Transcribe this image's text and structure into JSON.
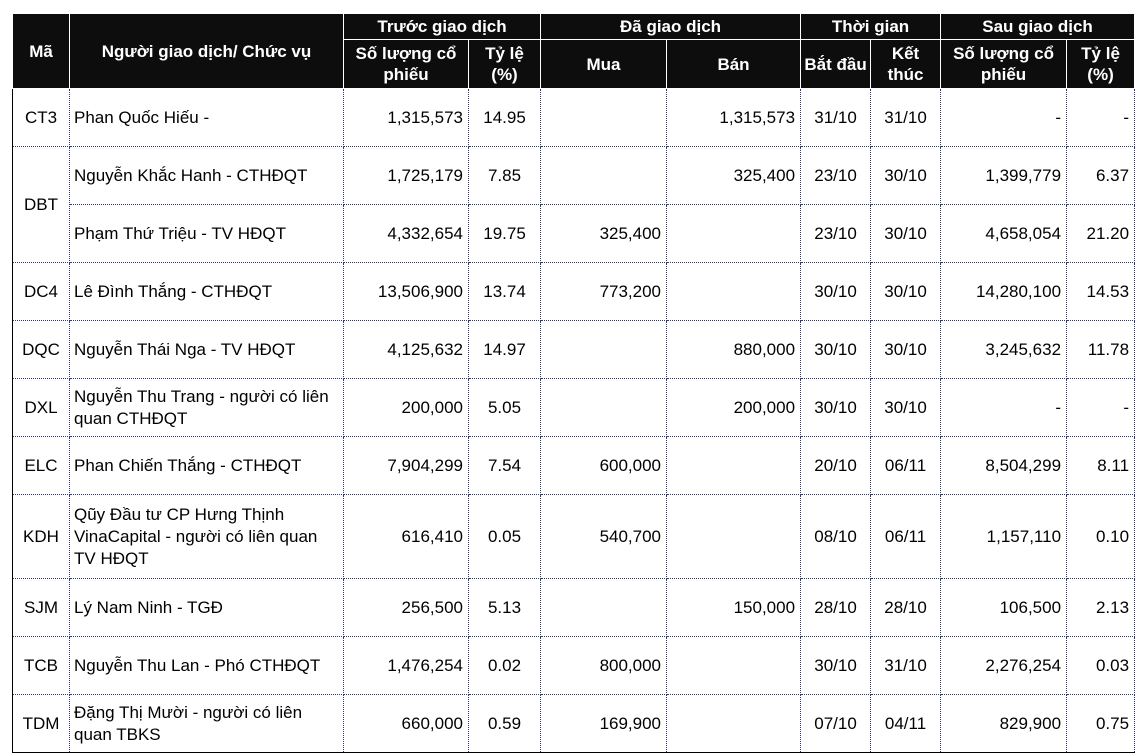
{
  "header": {
    "code": "Mã",
    "person": "Người giao dịch/ Chức vụ",
    "before": "Trước giao dịch",
    "traded": "Đã giao dịch",
    "time": "Thời gian",
    "after": "Sau giao dịch",
    "shares": "Số lượng cổ phiếu",
    "ratio": "Tỷ lệ (%)",
    "buy": "Mua",
    "sell": "Bán",
    "start": "Bắt đầu",
    "end": "Kết thúc",
    "shares_after": "Số lượng cổ phiếu",
    "ratio_after": "Tỷ lệ (%)"
  },
  "groups": [
    {
      "code": "CT3",
      "rows": [
        {
          "person": "Phan Quốc Hiếu -",
          "before_shares": "1,315,573",
          "before_ratio": "14.95",
          "buy": "",
          "sell": "1,315,573",
          "start": "31/10",
          "end": "31/10",
          "after_shares": "-",
          "after_ratio": "-"
        }
      ]
    },
    {
      "code": "DBT",
      "rows": [
        {
          "person": "Nguyễn Khắc Hanh - CTHĐQT",
          "before_shares": "1,725,179",
          "before_ratio": "7.85",
          "buy": "",
          "sell": "325,400",
          "start": "23/10",
          "end": "30/10",
          "after_shares": "1,399,779",
          "after_ratio": "6.37"
        },
        {
          "person": "Phạm Thứ Triệu - TV HĐQT",
          "before_shares": "4,332,654",
          "before_ratio": "19.75",
          "buy": "325,400",
          "sell": "",
          "start": "23/10",
          "end": "30/10",
          "after_shares": "4,658,054",
          "after_ratio": "21.20"
        }
      ]
    },
    {
      "code": "DC4",
      "rows": [
        {
          "person": "Lê Đình Thắng - CTHĐQT",
          "before_shares": "13,506,900",
          "before_ratio": "13.74",
          "buy": "773,200",
          "sell": "",
          "start": "30/10",
          "end": "30/10",
          "after_shares": "14,280,100",
          "after_ratio": "14.53"
        }
      ]
    },
    {
      "code": "DQC",
      "rows": [
        {
          "person": "Nguyễn Thái Nga - TV HĐQT",
          "before_shares": "4,125,632",
          "before_ratio": "14.97",
          "buy": "",
          "sell": "880,000",
          "start": "30/10",
          "end": "30/10",
          "after_shares": "3,245,632",
          "after_ratio": "11.78"
        }
      ]
    },
    {
      "code": "DXL",
      "rows": [
        {
          "person": "Nguyễn Thu Trang - người có liên quan CTHĐQT",
          "before_shares": "200,000",
          "before_ratio": "5.05",
          "buy": "",
          "sell": "200,000",
          "start": "30/10",
          "end": "30/10",
          "after_shares": "-",
          "after_ratio": "-"
        }
      ]
    },
    {
      "code": "ELC",
      "rows": [
        {
          "person": "Phan Chiến Thắng - CTHĐQT",
          "before_shares": "7,904,299",
          "before_ratio": "7.54",
          "buy": "600,000",
          "sell": "",
          "start": "20/10",
          "end": "06/11",
          "after_shares": "8,504,299",
          "after_ratio": "8.11"
        }
      ]
    },
    {
      "code": "KDH",
      "tall": true,
      "rows": [
        {
          "person": "Qũy Đầu tư CP Hưng Thịnh VinaCapital - người có liên quan TV HĐQT",
          "before_shares": "616,410",
          "before_ratio": "0.05",
          "buy": "540,700",
          "sell": "",
          "start": "08/10",
          "end": "06/11",
          "after_shares": "1,157,110",
          "after_ratio": "0.10"
        }
      ]
    },
    {
      "code": "SJM",
      "rows": [
        {
          "person": "Lý Nam Ninh - TGĐ",
          "before_shares": "256,500",
          "before_ratio": "5.13",
          "buy": "",
          "sell": "150,000",
          "start": "28/10",
          "end": "28/10",
          "after_shares": "106,500",
          "after_ratio": "2.13"
        }
      ]
    },
    {
      "code": "TCB",
      "rows": [
        {
          "person": "Nguyễn Thu Lan - Phó CTHĐQT",
          "before_shares": "1,476,254",
          "before_ratio": "0.02",
          "buy": "800,000",
          "sell": "",
          "start": "30/10",
          "end": "31/10",
          "after_shares": "2,276,254",
          "after_ratio": "0.03"
        }
      ]
    },
    {
      "code": "TDM",
      "rows": [
        {
          "person": "Đặng Thị Mười - người có liên quan TBKS",
          "before_shares": "660,000",
          "before_ratio": "0.59",
          "buy": "169,900",
          "sell": "",
          "start": "07/10",
          "end": "04/11",
          "after_shares": "829,900",
          "after_ratio": "0.75"
        }
      ]
    }
  ]
}
